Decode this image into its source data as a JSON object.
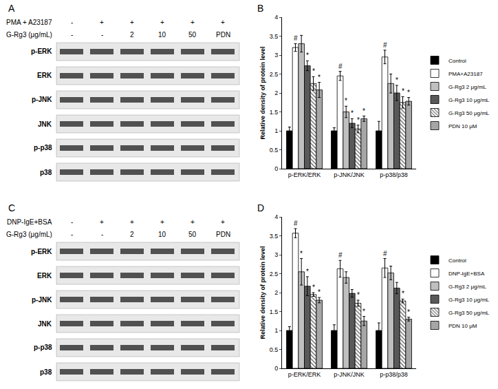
{
  "blots": [
    {
      "panel": "A",
      "treatment": {
        "label": "PMA + A23187",
        "lanes": [
          "-",
          "+",
          "+",
          "+",
          "+",
          "+"
        ]
      },
      "dose": {
        "label": "G-Rg3 (μg/mL)",
        "lanes": [
          "-",
          "-",
          "2",
          "10",
          "50",
          "PDN"
        ]
      },
      "bands": [
        "p-ERK",
        "ERK",
        "p-JNK",
        "JNK",
        "p-p38",
        "p38"
      ]
    },
    {
      "panel": "C",
      "treatment": {
        "label": "DNP-IgE+BSA",
        "lanes": [
          "-",
          "+",
          "+",
          "+",
          "+",
          "+"
        ]
      },
      "dose": {
        "label": "G-Rg3 (μg/mL)",
        "lanes": [
          "-",
          "-",
          "2",
          "10",
          "50",
          "PDN"
        ]
      },
      "bands": [
        "p-ERK",
        "ERK",
        "p-JNK",
        "JNK",
        "p-p38",
        "p38"
      ]
    }
  ],
  "chart_data": [
    {
      "panel": "B",
      "type": "bar",
      "ylabel": "Relative density of protein level",
      "categories": [
        "p-ERK/ERK",
        "p-JNK/JNK",
        "p-p38/p38"
      ],
      "ylim": [
        0,
        4
      ],
      "yticks": [
        0,
        0.5,
        1,
        1.5,
        2,
        2.5,
        3,
        3.5,
        4
      ],
      "grid": false,
      "legend": "right",
      "series": [
        {
          "name": "Control",
          "color": "#000000",
          "values": [
            1.0,
            1.0,
            1.0
          ],
          "errors": [
            0.1,
            0.08,
            0.25
          ],
          "annotations": [
            null,
            null,
            null
          ]
        },
        {
          "name": "PMA+A23187",
          "color": "#ffffff",
          "values": [
            3.2,
            2.45,
            2.95
          ],
          "errors": [
            0.1,
            0.12,
            0.18
          ],
          "annotations": [
            "#",
            "#",
            "#"
          ]
        },
        {
          "name": "G-Rg3 2 μg/mL",
          "color": "#bfbfbf",
          "values": [
            3.3,
            1.5,
            2.25
          ],
          "errors": [
            0.22,
            0.15,
            0.25
          ],
          "annotations": [
            null,
            "*",
            null
          ]
        },
        {
          "name": "G-Rg3 10 μg/mL",
          "color": "#595959",
          "values": [
            2.72,
            1.2,
            2.0
          ],
          "errors": [
            0.13,
            0.12,
            0.2
          ],
          "annotations": [
            "*",
            "*",
            "*"
          ]
        },
        {
          "name": "G-Rg3 50 μg/mL",
          "color": "#ffffff",
          "marker": "hatch",
          "values": [
            2.25,
            1.05,
            1.75
          ],
          "errors": [
            0.18,
            0.1,
            0.15
          ],
          "annotations": [
            "*",
            "*",
            "*"
          ]
        },
        {
          "name": "PDN 10 μM",
          "color": "#a6a6a6",
          "values": [
            2.08,
            1.32,
            1.78
          ],
          "errors": [
            0.2,
            0.07,
            0.1
          ],
          "annotations": [
            "*",
            "*",
            "*"
          ]
        }
      ]
    },
    {
      "panel": "D",
      "type": "bar",
      "ylabel": "Relative density of protein level",
      "categories": [
        "p-ERK/ERK",
        "p-JNK/JNK",
        "p-p38/p38"
      ],
      "ylim": [
        0,
        4
      ],
      "yticks": [
        0,
        0.5,
        1,
        1.5,
        2,
        2.5,
        3,
        3.5,
        4
      ],
      "grid": false,
      "legend": "right",
      "series": [
        {
          "name": "Control",
          "color": "#000000",
          "values": [
            1.0,
            1.0,
            1.0
          ],
          "errors": [
            0.1,
            0.15,
            0.2
          ],
          "annotations": [
            null,
            null,
            null
          ]
        },
        {
          "name": "DNP-IgE+BSA",
          "color": "#ffffff",
          "values": [
            3.57,
            2.63,
            2.65
          ],
          "errors": [
            0.12,
            0.22,
            0.25
          ],
          "annotations": [
            "#",
            "#",
            "#"
          ]
        },
        {
          "name": "G-Rg3 2 μg/mL",
          "color": "#bfbfbf",
          "values": [
            2.55,
            2.4,
            2.52
          ],
          "errors": [
            0.35,
            0.15,
            0.18
          ],
          "annotations": [
            "*",
            null,
            null
          ]
        },
        {
          "name": "G-Rg3 10 μg/mL",
          "color": "#595959",
          "values": [
            2.17,
            1.98,
            2.12
          ],
          "errors": [
            0.25,
            0.1,
            0.15
          ],
          "annotations": [
            "*",
            null,
            null
          ]
        },
        {
          "name": "G-Rg3 50 μg/mL",
          "color": "#ffffff",
          "marker": "hatch",
          "values": [
            1.95,
            1.72,
            1.78
          ],
          "errors": [
            0.05,
            0.08,
            0.05
          ],
          "annotations": [
            "*",
            "*",
            "*"
          ]
        },
        {
          "name": "PDN 10 μM",
          "color": "#a6a6a6",
          "values": [
            1.8,
            1.25,
            1.3
          ],
          "errors": [
            0.07,
            0.12,
            0.05
          ],
          "annotations": [
            "*",
            "*",
            "*"
          ]
        }
      ]
    }
  ]
}
